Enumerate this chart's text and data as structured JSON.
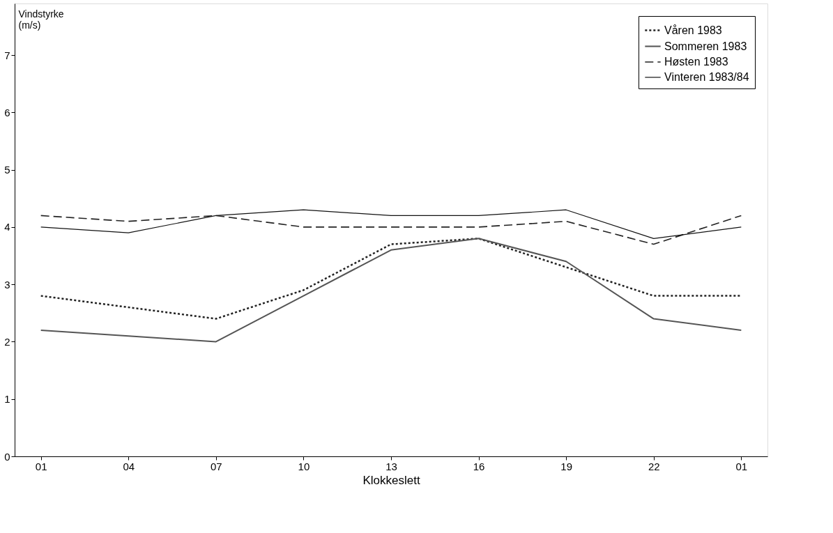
{
  "chart_data": {
    "type": "line",
    "xlabel": "Klokkeslett",
    "ylabel": "Vindstyrke (m/s)",
    "categories": [
      "01",
      "04",
      "07",
      "10",
      "13",
      "16",
      "19",
      "22",
      "01"
    ],
    "ylim": [
      0,
      7.9
    ],
    "yticks": [
      0,
      1,
      2,
      3,
      4,
      5,
      6,
      7
    ],
    "grid": false,
    "legend": "top right",
    "marker": "none",
    "series": [
      {
        "name": "Våren 1983",
        "color": "#222222",
        "line_style": "dotted",
        "values": [
          2.8,
          2.6,
          2.4,
          2.9,
          3.7,
          3.8,
          3.3,
          2.8,
          2.8
        ]
      },
      {
        "name": "Sommeren 1983",
        "color": "#555555",
        "line_style": "solid",
        "values": [
          2.2,
          2.1,
          2.0,
          2.8,
          3.6,
          3.8,
          3.4,
          2.4,
          2.2
        ]
      },
      {
        "name": "Høsten 1983",
        "color": "#222222",
        "line_style": "dashed",
        "values": [
          4.2,
          4.1,
          4.2,
          4.0,
          4.0,
          4.0,
          4.1,
          3.7,
          4.2
        ]
      },
      {
        "name": "Vinteren 1983/84",
        "color": "#111111",
        "line_style": "solid",
        "values": [
          4.0,
          3.9,
          4.2,
          4.3,
          4.2,
          4.2,
          4.3,
          3.8,
          4.0
        ]
      }
    ]
  }
}
